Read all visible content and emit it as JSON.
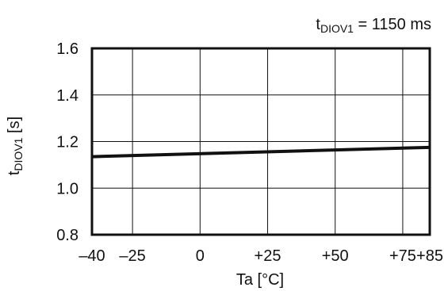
{
  "chart_data": {
    "type": "line",
    "condition_label": {
      "base": "t",
      "subscript": "DIOV1",
      "suffix": " = 1150 ms"
    },
    "xlabel": "Ta [°C]",
    "ylabel": {
      "base": "t",
      "subscript": "DIOV1",
      "suffix": " [s]"
    },
    "x_ticks": [
      {
        "value": -40,
        "label": "–40"
      },
      {
        "value": -25,
        "label": "–25"
      },
      {
        "value": 0,
        "label": "0"
      },
      {
        "value": 25,
        "label": "+25"
      },
      {
        "value": 50,
        "label": "+50"
      },
      {
        "value": 75,
        "label": "+75"
      },
      {
        "value": 85,
        "label": "+85"
      }
    ],
    "y_ticks": [
      {
        "value": 0.8,
        "label": "0.8"
      },
      {
        "value": 1.0,
        "label": "1.0"
      },
      {
        "value": 1.2,
        "label": "1.2"
      },
      {
        "value": 1.4,
        "label": "1.4"
      },
      {
        "value": 1.6,
        "label": "1.6"
      }
    ],
    "xlim": [
      -40,
      85
    ],
    "ylim": [
      0.8,
      1.6
    ],
    "grid": true,
    "series": [
      {
        "x": [
          -40,
          85
        ],
        "y": [
          1.135,
          1.175
        ]
      }
    ],
    "colors": {
      "line": "#111111",
      "grid": "#111111",
      "frame": "#111111",
      "background": "#ffffff"
    }
  }
}
